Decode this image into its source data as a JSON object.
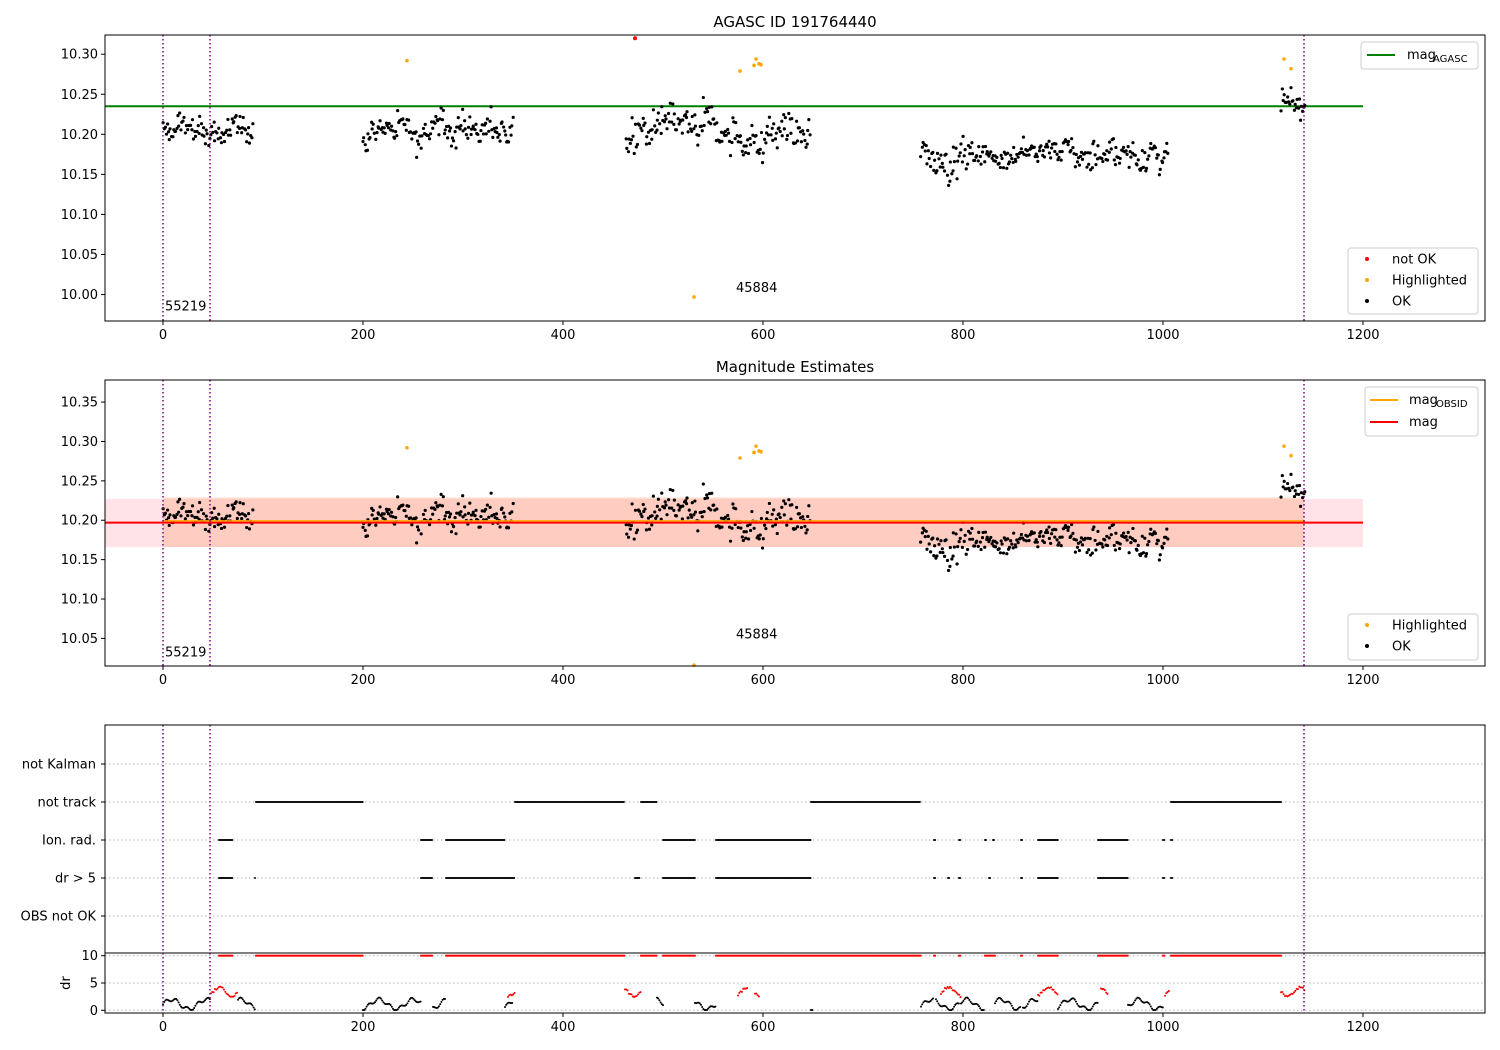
{
  "chart_data": [
    {
      "type": "scatter",
      "title": "AGASC ID 191764440",
      "xlabel": "",
      "ylabel": "",
      "xlim": [
        -58,
        1322
      ],
      "ylim": [
        9.967,
        10.324
      ],
      "x_ticks": [
        0,
        200,
        400,
        600,
        800,
        1000,
        1200
      ],
      "y_ticks": [
        10.0,
        10.05,
        10.1,
        10.15,
        10.2,
        10.25,
        10.3
      ],
      "grid": false,
      "vlines": [
        0,
        47,
        1141
      ],
      "vline_color": "#800080",
      "hline": {
        "value": 10.235,
        "x_range": [
          -58,
          1200
        ],
        "color": "#008000"
      },
      "annotations": [
        {
          "text": "55219",
          "x": 2,
          "y": 9.98
        },
        {
          "text": "45884",
          "x": 573,
          "y": 10.003
        }
      ],
      "legend_lines": [
        {
          "label": "mag",
          "sub": "AGASC",
          "color": "#008000"
        }
      ],
      "legend_lines_position": "top-right",
      "legend_markers": [
        {
          "label": "not OK",
          "color": "#ff0000"
        },
        {
          "label": "Highlighted",
          "color": "#ffa500"
        },
        {
          "label": "OK",
          "color": "#000000"
        }
      ],
      "legend_markers_position": "lower-right",
      "segments": [
        {
          "x": [
            0,
            90
          ],
          "mean": 10.205,
          "spread": 0.022
        },
        {
          "x": [
            200,
            350
          ],
          "mean": 10.208,
          "spread": 0.025
        },
        {
          "x": [
            463,
            647
          ],
          "mean": 10.2,
          "spread": 0.033
        },
        {
          "x": [
            758,
            1005
          ],
          "mean": 10.178,
          "spread": 0.025
        },
        {
          "x": [
            1118,
            1142
          ],
          "mean": 10.24,
          "spread": 0.018
        }
      ],
      "highlighted": [
        {
          "x": 244,
          "y": 10.292
        },
        {
          "x": 531,
          "y": 9.997
        },
        {
          "x": 577,
          "y": 10.279
        },
        {
          "x": 591,
          "y": 10.286
        },
        {
          "x": 593,
          "y": 10.294
        },
        {
          "x": 596,
          "y": 10.288
        },
        {
          "x": 598,
          "y": 10.287
        },
        {
          "x": 1121,
          "y": 10.294
        },
        {
          "x": 1128,
          "y": 10.282
        }
      ],
      "not_ok": [
        {
          "x": 472,
          "y": 10.32
        }
      ]
    },
    {
      "type": "scatter",
      "title": "Magnitude Estimates",
      "xlabel": "",
      "ylabel": "",
      "xlim": [
        -58,
        1322
      ],
      "ylim": [
        10.015,
        10.378
      ],
      "x_ticks": [
        0,
        200,
        400,
        600,
        800,
        1000,
        1200
      ],
      "y_ticks": [
        10.05,
        10.1,
        10.15,
        10.2,
        10.25,
        10.3,
        10.35
      ],
      "grid": false,
      "vlines": [
        0,
        47,
        1141
      ],
      "vline_color": "#800080",
      "hline": {
        "value": 10.197,
        "x_range": [
          -58,
          1200
        ],
        "color": "#ff0000"
      },
      "hline_obsid": {
        "value": 10.198,
        "x_range": [
          0,
          1141
        ],
        "color": "#ffa500"
      },
      "band_mag": {
        "y": [
          10.166,
          10.227
        ],
        "x_range": [
          -58,
          1200
        ],
        "color": "#ffc0cb"
      },
      "band_obsid": {
        "y": [
          10.166,
          10.229
        ],
        "x_range": [
          0,
          1141
        ],
        "color": "#ffa07a"
      },
      "annotations": [
        {
          "text": "55219",
          "x": 2,
          "y": 10.027
        },
        {
          "text": "45884",
          "x": 573,
          "y": 10.05
        }
      ],
      "legend_lines": [
        {
          "label": "mag",
          "sub": "OBSID",
          "color": "#ffa500"
        },
        {
          "label": "mag",
          "sub": "",
          "color": "#ff0000"
        }
      ],
      "legend_lines_position": "top-right",
      "legend_markers": [
        {
          "label": "Highlighted",
          "color": "#ffa500"
        },
        {
          "label": "OK",
          "color": "#000000"
        }
      ],
      "legend_markers_position": "lower-right",
      "highlighted": [
        {
          "x": 244,
          "y": 10.292
        },
        {
          "x": 531,
          "y": 10.016
        },
        {
          "x": 577,
          "y": 10.279
        },
        {
          "x": 591,
          "y": 10.286
        },
        {
          "x": 593,
          "y": 10.294
        },
        {
          "x": 596,
          "y": 10.288
        },
        {
          "x": 598,
          "y": 10.287
        },
        {
          "x": 1121,
          "y": 10.294
        },
        {
          "x": 1128,
          "y": 10.282
        }
      ]
    },
    {
      "type": "scatter",
      "title": "",
      "xlabel": "",
      "ylabel": "",
      "xlim": [
        -58,
        1322
      ],
      "y_categories": [
        "not Kalman",
        "not track",
        "Ion. rad.",
        "dr > 5",
        "OBS not OK"
      ],
      "grid": "horizontal dotted",
      "vlines": [
        0,
        47,
        1141
      ],
      "vline_color": "#800080",
      "flags": {
        "not track": [
          [
            93,
            200
          ],
          [
            352,
            462
          ],
          [
            478,
            494
          ],
          [
            648,
            758
          ],
          [
            1008,
            1118
          ]
        ],
        "Ion. rad.": [
          [
            56,
            70
          ],
          [
            258,
            270
          ],
          [
            283,
            342
          ],
          [
            500,
            532
          ],
          [
            553,
            648
          ],
          [
            771,
            773
          ],
          [
            796,
            798
          ],
          [
            822,
            824
          ],
          [
            830,
            832
          ],
          [
            858,
            860
          ],
          [
            875,
            895
          ],
          [
            935,
            965
          ],
          [
            1000,
            1002
          ],
          [
            1008,
            1010
          ]
        ],
        "dr > 5": [
          [
            56,
            70
          ],
          [
            92,
            93
          ],
          [
            258,
            270
          ],
          [
            283,
            352
          ],
          [
            472,
            477
          ],
          [
            500,
            532
          ],
          [
            553,
            648
          ],
          [
            771,
            773
          ],
          [
            785,
            787
          ],
          [
            796,
            798
          ],
          [
            826,
            828
          ],
          [
            858,
            860
          ],
          [
            875,
            895
          ],
          [
            935,
            965
          ],
          [
            1000,
            1002
          ],
          [
            1008,
            1010
          ]
        ]
      }
    },
    {
      "type": "scatter",
      "title": "",
      "xlabel": "",
      "ylabel": "dr",
      "xlim": [
        -58,
        1322
      ],
      "ylim": [
        -0.5,
        10.5
      ],
      "x_ticks": [
        0,
        200,
        400,
        600,
        800,
        1000,
        1200
      ],
      "y_ticks": [
        0,
        5,
        10
      ],
      "grid": "horizontal dotted",
      "vlines": [
        0,
        47,
        1141
      ],
      "vline_color": "#800080",
      "ok_ranges": [
        [
          0,
          47
        ],
        [
          75,
          93
        ],
        [
          200,
          258
        ],
        [
          270,
          283
        ],
        [
          342,
          350
        ],
        [
          494,
          500
        ],
        [
          532,
          553
        ],
        [
          648,
          650
        ],
        [
          758,
          771
        ],
        [
          773,
          796
        ],
        [
          798,
          822
        ],
        [
          832,
          858
        ],
        [
          860,
          875
        ],
        [
          895,
          935
        ],
        [
          965,
          1000
        ]
      ],
      "clipped_ranges": [
        [
          56,
          70
        ],
        [
          93,
          200
        ],
        [
          258,
          270
        ],
        [
          283,
          462
        ],
        [
          478,
          494
        ],
        [
          500,
          532
        ],
        [
          553,
          758
        ],
        [
          771,
          773
        ],
        [
          796,
          798
        ],
        [
          822,
          832
        ],
        [
          858,
          860
        ],
        [
          875,
          895
        ],
        [
          935,
          965
        ],
        [
          1000,
          1002
        ],
        [
          1008,
          1118
        ]
      ],
      "not_ok_low": [
        [
          48,
          75
        ],
        [
          345,
          352
        ],
        [
          462,
          478
        ],
        [
          575,
          585
        ],
        [
          592,
          597
        ],
        [
          778,
          798
        ],
        [
          875,
          895
        ],
        [
          938,
          945
        ],
        [
          1002,
          1006
        ],
        [
          1118,
          1142
        ]
      ]
    }
  ]
}
